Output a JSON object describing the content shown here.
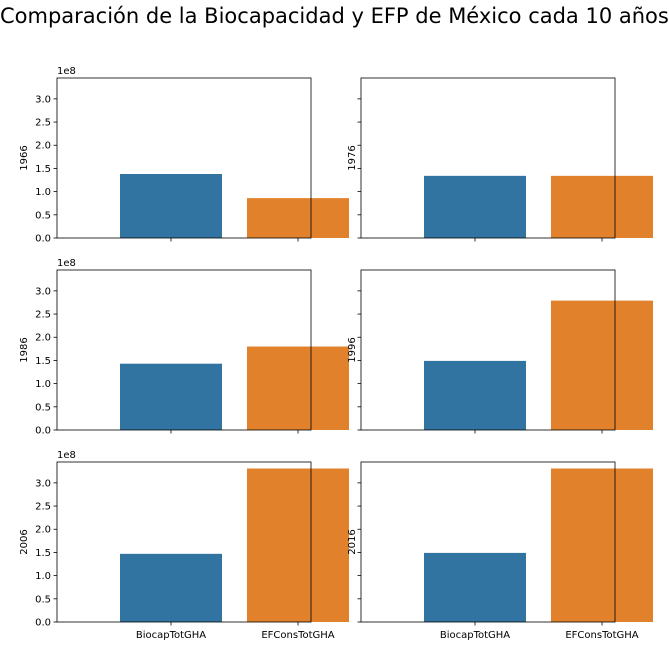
{
  "title": "Comparación de la Biocapacidad y EFP de México cada 10 años",
  "colors": {
    "BiocapTotGHA": "#3274a1",
    "EFConsTotGHA": "#e1812c"
  },
  "chart_data": {
    "type": "bar",
    "layout": "3x2 grid, shared axes",
    "categories": [
      "BiocapTotGHA",
      "EFConsTotGHA"
    ],
    "ylim": [
      0,
      345000000.0
    ],
    "yticks": [
      "0.0",
      "0.5",
      "1.0",
      "1.5",
      "2.0",
      "2.5",
      "3.0"
    ],
    "y_offset_label": "1e8",
    "panels": [
      {
        "ylabel": "1966",
        "values": [
          138000000.0,
          86000000.0
        ]
      },
      {
        "ylabel": "1976",
        "values": [
          134000000.0,
          134000000.0
        ]
      },
      {
        "ylabel": "1986",
        "values": [
          143000000.0,
          180000000.0
        ]
      },
      {
        "ylabel": "1996",
        "values": [
          149000000.0,
          279000000.0
        ]
      },
      {
        "ylabel": "2006",
        "values": [
          147000000.0,
          331000000.0
        ]
      },
      {
        "ylabel": "2016",
        "values": [
          149000000.0,
          331000000.0
        ]
      }
    ]
  }
}
